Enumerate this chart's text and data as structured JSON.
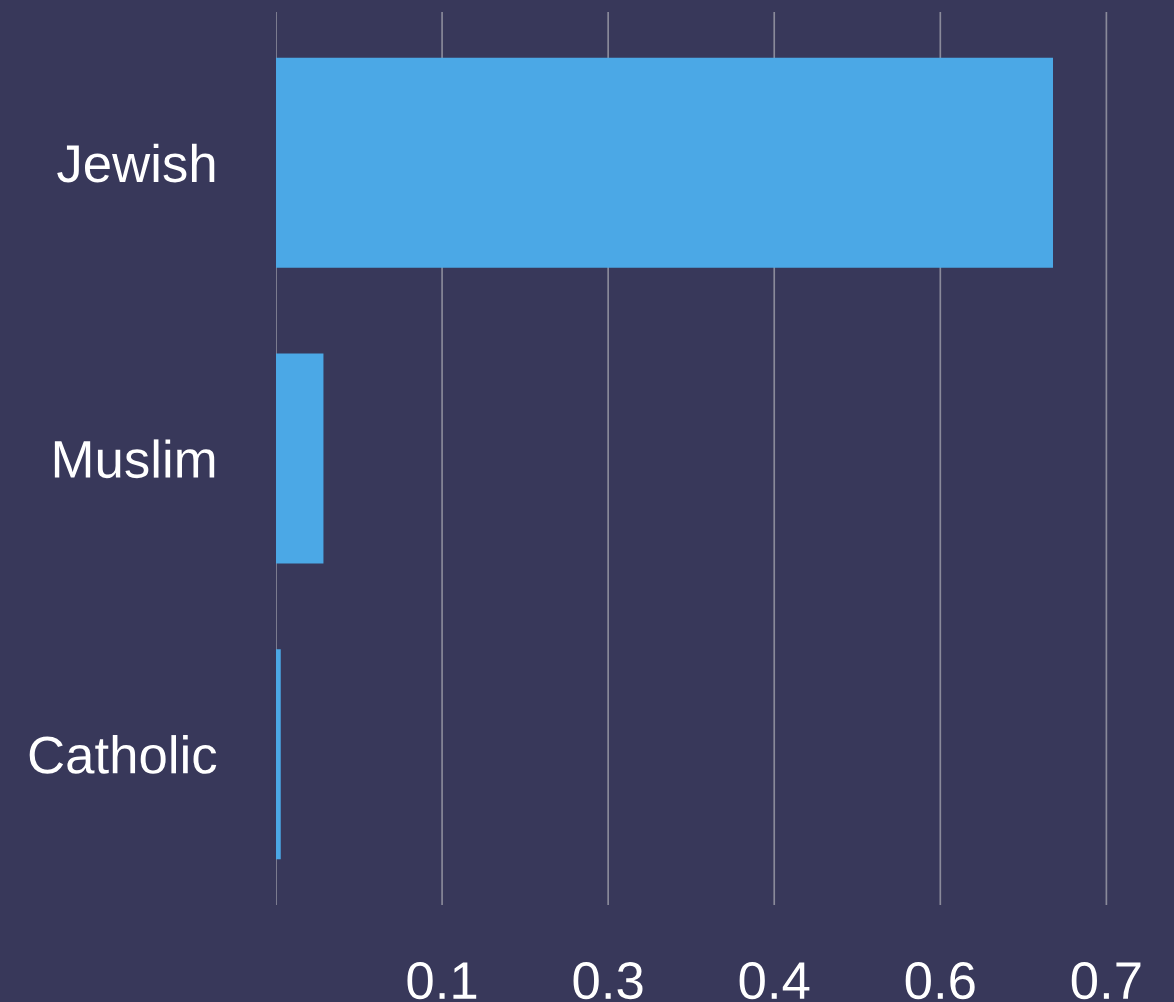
{
  "chart_data": {
    "type": "bar",
    "orientation": "horizontal",
    "categories": [
      "Jewish",
      "Muslim",
      "Catholic"
    ],
    "values": [
      0.655,
      0.04,
      0.004
    ],
    "color": "#4ba8e6",
    "xlim": [
      0,
      0.757
    ],
    "xticks": [
      {
        "value": 0,
        "label": null
      },
      {
        "value": 0.14,
        "label": "0.1"
      },
      {
        "value": 0.28,
        "label": "0.3"
      },
      {
        "value": 0.42,
        "label": "0.4"
      },
      {
        "value": 0.56,
        "label": "0.6"
      },
      {
        "value": 0.7,
        "label": "0.7"
      }
    ],
    "grid": "x"
  }
}
